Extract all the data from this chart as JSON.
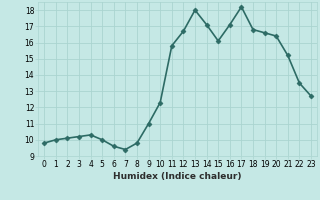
{
  "x": [
    0,
    1,
    2,
    3,
    4,
    5,
    6,
    7,
    8,
    9,
    10,
    11,
    12,
    13,
    14,
    15,
    16,
    17,
    18,
    19,
    20,
    21,
    22,
    23
  ],
  "y": [
    9.8,
    10.0,
    10.1,
    10.2,
    10.3,
    10.0,
    9.6,
    9.4,
    9.8,
    11.0,
    12.3,
    15.8,
    16.7,
    18.0,
    17.1,
    16.1,
    17.1,
    18.2,
    16.8,
    16.6,
    16.4,
    15.2,
    13.5,
    12.7
  ],
  "xlabel": "Humidex (Indice chaleur)",
  "xlim": [
    -0.5,
    23.5
  ],
  "ylim": [
    9,
    18.5
  ],
  "yticks": [
    9,
    10,
    11,
    12,
    13,
    14,
    15,
    16,
    17,
    18
  ],
  "xticks": [
    0,
    1,
    2,
    3,
    4,
    5,
    6,
    7,
    8,
    9,
    10,
    11,
    12,
    13,
    14,
    15,
    16,
    17,
    18,
    19,
    20,
    21,
    22,
    23
  ],
  "line_color": "#2d6b65",
  "bg_color": "#c5e8e5",
  "grid_color": "#aad4d0",
  "marker_size": 2.5,
  "linewidth": 1.2,
  "tick_fontsize": 5.5,
  "xlabel_fontsize": 6.5
}
